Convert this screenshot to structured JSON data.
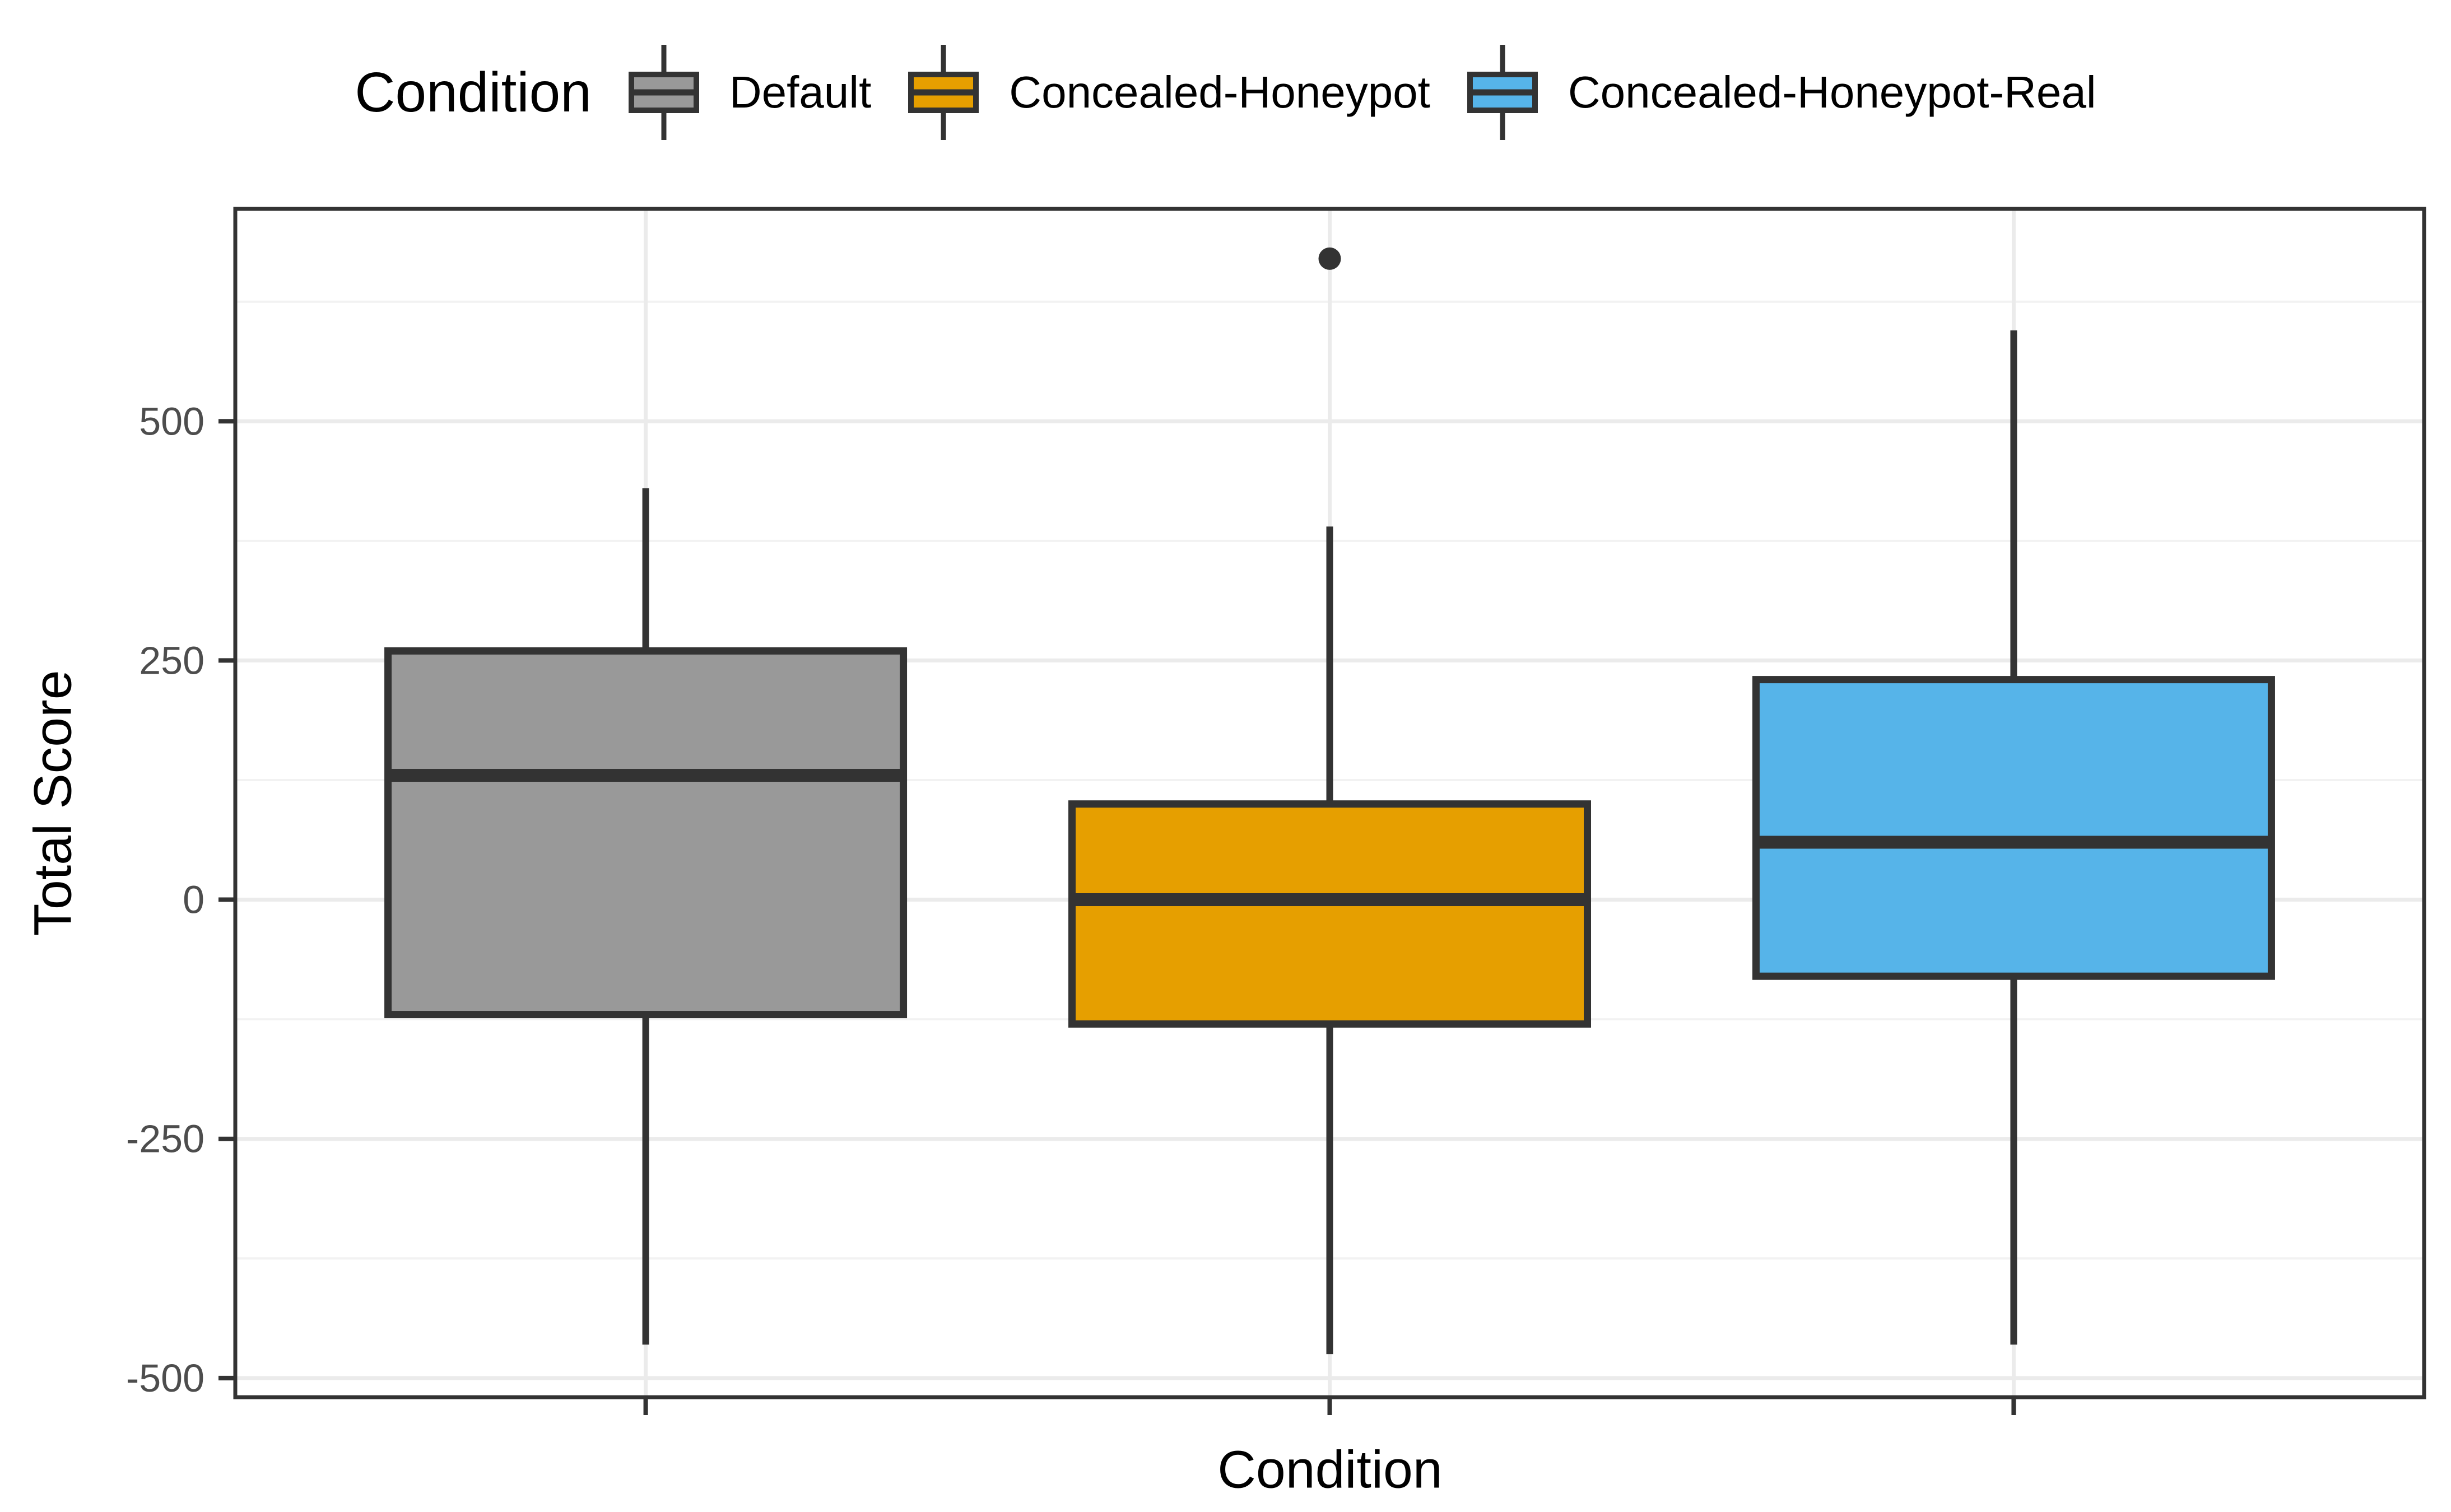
{
  "chart_data": {
    "type": "boxplot",
    "legend_title": "Condition",
    "xlabel": "Condition",
    "ylabel": "Total Score",
    "y_ticks": [
      500,
      250,
      0,
      -250,
      -500
    ],
    "y_minor_gridlines": [
      625,
      375,
      125,
      -125,
      -375
    ],
    "ylim": [
      -520,
      722
    ],
    "grid": true,
    "legend_position": "top",
    "x_tick_labels_shown": false,
    "categories": [
      "Default",
      "Concealed-Honeypot",
      "Concealed-Honeypot-Real"
    ],
    "series": [
      {
        "name": "Default",
        "color": "#999999",
        "whisker_low": -465,
        "q1": -120,
        "median": 130,
        "q3": 260,
        "whisker_high": 430,
        "outliers": []
      },
      {
        "name": "Concealed-Honeypot",
        "color": "#E69F00",
        "whisker_low": -475,
        "q1": -130,
        "median": 0,
        "q3": 100,
        "whisker_high": 390,
        "outliers": [
          670
        ]
      },
      {
        "name": "Concealed-Honeypot-Real",
        "color": "#56B4E9",
        "whisker_low": -465,
        "q1": -80,
        "median": 60,
        "q3": 230,
        "whisker_high": 595,
        "outliers": []
      }
    ],
    "colors": {
      "panel_background": "#FFFFFF",
      "panel_border": "#333333",
      "grid_major": "#EBEBEB",
      "grid_minor": "#F2F2F2",
      "box_stroke": "#333333",
      "tick_mark": "#333333",
      "tick_label": "#4D4D4D",
      "title_text": "#000000",
      "outlier": "#333333"
    }
  }
}
